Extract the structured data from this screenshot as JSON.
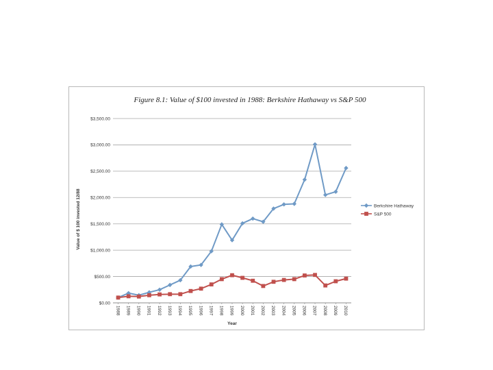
{
  "chart_data": {
    "type": "line",
    "title": "Figure 8.1: Value of $100 invested in 1988: Berkshire Hathaway vs S&P 500",
    "xlabel": "Year",
    "ylabel": "Value of $ 100 invested 12/88",
    "x": [
      "1988",
      "1989",
      "1990",
      "1991",
      "1992",
      "1993",
      "1994",
      "1995",
      "1996",
      "1997",
      "1998",
      "1999",
      "2000",
      "2001",
      "2002",
      "2003",
      "2004",
      "2005",
      "2006",
      "2007",
      "2008",
      "2009",
      "2010"
    ],
    "yticks": [
      "$0.00",
      "$500.00",
      "$1,000.00",
      "$1,500.00",
      "$2,000.00",
      "$2,500.00",
      "$3,000.00",
      "$3,500.00"
    ],
    "ylim": [
      0,
      3500
    ],
    "grid": true,
    "legend_position": "right",
    "series": [
      {
        "name": "Berkshire Hathaway",
        "color": "#6f9ac6",
        "marker": "diamond",
        "values": [
          100,
          185,
          145,
          200,
          250,
          340,
          430,
          690,
          720,
          980,
          1490,
          1190,
          1510,
          1600,
          1540,
          1790,
          1870,
          1880,
          2340,
          3010,
          2050,
          2110,
          2560
        ]
      },
      {
        "name": "S&P 500",
        "color": "#c0504d",
        "marker": "square",
        "values": [
          100,
          125,
          120,
          145,
          160,
          165,
          165,
          225,
          270,
          350,
          450,
          525,
          475,
          420,
          320,
          400,
          435,
          450,
          520,
          530,
          330,
          410,
          460
        ]
      }
    ]
  }
}
